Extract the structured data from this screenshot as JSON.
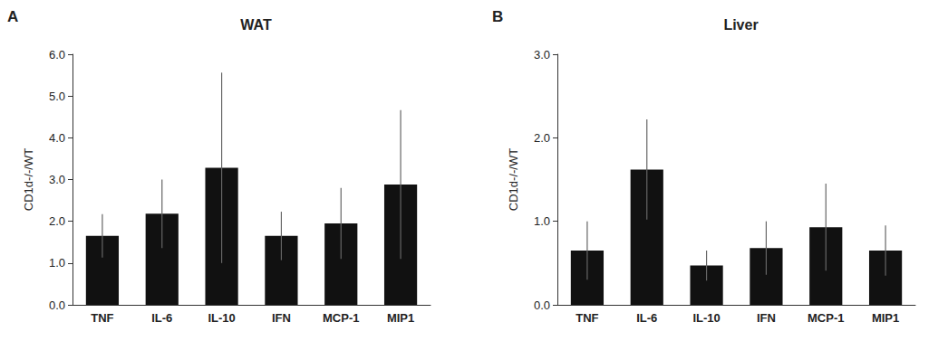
{
  "chart_data": [
    {
      "type": "bar",
      "title": "WAT",
      "annotation": "A",
      "categories": [
        "TNF",
        "IL-6",
        "IL-10",
        "IFN",
        "MCP-1",
        "MIP1"
      ],
      "values": [
        1.65,
        2.18,
        3.28,
        1.65,
        1.95,
        2.88
      ],
      "errors": [
        0.52,
        0.82,
        2.28,
        0.58,
        0.85,
        1.78
      ],
      "ylabel": "CD1d-/-/WT",
      "color": "#111111",
      "ylim": [
        0,
        6.0
      ],
      "yticks": [
        {
          "value": 0,
          "label": "0.0"
        },
        {
          "value": 1,
          "label": "1.0"
        },
        {
          "value": 2,
          "label": "2.0"
        },
        {
          "value": 3,
          "label": "3.0"
        },
        {
          "value": 4,
          "label": "4.0"
        },
        {
          "value": 5,
          "label": "5.0"
        },
        {
          "value": 6,
          "label": "6.0"
        }
      ],
      "grid": false
    },
    {
      "type": "bar",
      "title": "Liver",
      "annotation": "B",
      "categories": [
        "TNF",
        "IL-6",
        "IL-10",
        "IFN",
        "MCP-1",
        "MIP1"
      ],
      "values": [
        0.65,
        1.62,
        0.47,
        0.68,
        0.93,
        0.65
      ],
      "errors": [
        0.35,
        0.6,
        0.18,
        0.32,
        0.52,
        0.3
      ],
      "ylabel": "CD1d-/-/WT",
      "color": "#111111",
      "ylim": [
        0,
        3.0
      ],
      "yticks": [
        {
          "value": 0,
          "label": "0.0"
        },
        {
          "value": 1,
          "label": "1.0"
        },
        {
          "value": 2,
          "label": "2.0"
        },
        {
          "value": 3,
          "label": "3.0"
        }
      ],
      "grid": false
    }
  ]
}
